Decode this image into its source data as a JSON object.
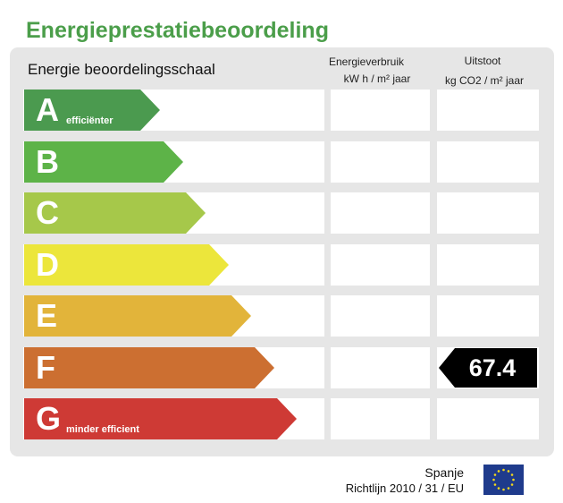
{
  "title": "Energieprestatiebeoordeling",
  "scale_heading": "Energie beoordelingsschaal",
  "columns": {
    "energy": {
      "label": "Energieverbruik",
      "unit": "kW h / m² jaar"
    },
    "emission": {
      "label": "Uitstoot",
      "unit": "kg CO2 / m² jaar"
    }
  },
  "classes": [
    {
      "letter": "A",
      "subtitle": "efficiënter",
      "color": "#4b9a4f"
    },
    {
      "letter": "B",
      "subtitle": "",
      "color": "#5db348"
    },
    {
      "letter": "C",
      "subtitle": "",
      "color": "#a6c84a"
    },
    {
      "letter": "D",
      "subtitle": "",
      "color": "#ece63b"
    },
    {
      "letter": "E",
      "subtitle": "",
      "color": "#e2b43a"
    },
    {
      "letter": "F",
      "subtitle": "",
      "color": "#cc6f31"
    },
    {
      "letter": "G",
      "subtitle": "minder efficient",
      "color": "#ce3a35"
    }
  ],
  "rating": {
    "emission_class": "F",
    "emission_value": "67.4",
    "color": "#000000"
  },
  "footer": {
    "country": "Spanje",
    "directive": "Richtlijn 2010 / 31 / EU"
  },
  "eu_flag": {
    "icon": "eu-flag-icon",
    "background": "#1f3b8c",
    "stars": "#f4d91c"
  }
}
